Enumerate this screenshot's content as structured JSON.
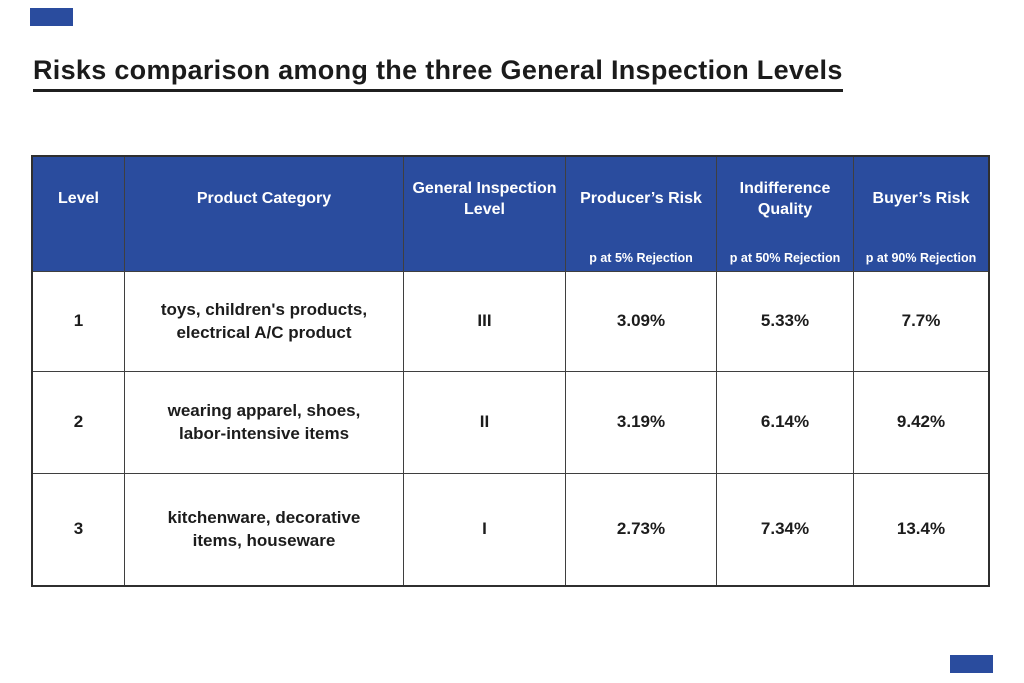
{
  "page": {
    "accent_blue": "#2a4c9e",
    "background": "#ffffff"
  },
  "title": "Risks comparison among the three General Inspection Levels",
  "table": {
    "columns": [
      {
        "label": "Level",
        "sublabel": ""
      },
      {
        "label": "Product Category",
        "sublabel": ""
      },
      {
        "label": "General Inspection Level",
        "sublabel": ""
      },
      {
        "label": "Producer’s Risk",
        "sublabel": "p at 5% Rejection"
      },
      {
        "label": "Indifference Quality",
        "sublabel": "p at 50% Rejection"
      },
      {
        "label": "Buyer’s Risk",
        "sublabel": "p at 90% Rejection"
      }
    ],
    "rows": [
      [
        "1",
        "toys, children's products, electrical A/C product",
        "III",
        "3.09%",
        "5.33%",
        "7.7%"
      ],
      [
        "2",
        "wearing apparel, shoes, labor-intensive items",
        "II",
        "3.19%",
        "6.14%",
        "9.42%"
      ],
      [
        "3",
        "kitchenware, decorative items, houseware",
        "I",
        "2.73%",
        "7.34%",
        "13.4%"
      ]
    ]
  },
  "chart_data": {
    "type": "table",
    "title": "Risks comparison among the three General Inspection Levels",
    "columns": [
      "Level",
      "Product Category",
      "General Inspection Level",
      "Producer’s Risk (p at 5% Rejection)",
      "Indifference Quality (p at 50% Rejection)",
      "Buyer’s Risk (p at 90% Rejection)"
    ],
    "rows": [
      {
        "level": 1,
        "product_category": "toys, children's products, electrical A/C product",
        "general_inspection_level": "III",
        "producers_risk_pct": 3.09,
        "indifference_quality_pct": 5.33,
        "buyers_risk_pct": 7.7
      },
      {
        "level": 2,
        "product_category": "wearing apparel, shoes, labor-intensive items",
        "general_inspection_level": "II",
        "producers_risk_pct": 3.19,
        "indifference_quality_pct": 6.14,
        "buyers_risk_pct": 9.42
      },
      {
        "level": 3,
        "product_category": "kitchenware, decorative items, houseware",
        "general_inspection_level": "I",
        "producers_risk_pct": 2.73,
        "indifference_quality_pct": 7.34,
        "buyers_risk_pct": 13.4
      }
    ]
  }
}
